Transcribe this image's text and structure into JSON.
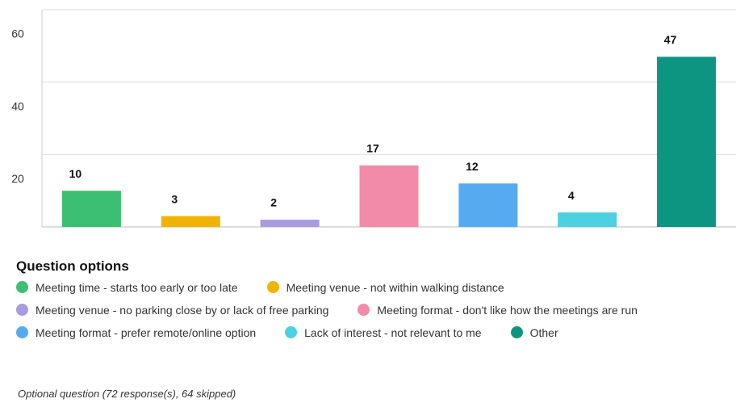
{
  "chart_data": {
    "type": "bar",
    "categories": [
      "Meeting time - starts too early or too late",
      "Meeting venue - not within walking distance",
      "Meeting venue - no parking close by or lack of free parking",
      "Meeting format - don't like how the meetings are run",
      "Meeting format - prefer remote/online option",
      "Lack of interest - not relevant to me",
      "Other"
    ],
    "values": [
      10,
      3,
      2,
      17,
      12,
      4,
      47
    ],
    "colors": [
      "#3dbf73",
      "#f0b400",
      "#a99be0",
      "#f28aa9",
      "#56aaf0",
      "#4dd0e0",
      "#0e9582"
    ],
    "ylim": [
      0,
      60
    ],
    "yticks": [
      20,
      40,
      60
    ],
    "grid": true,
    "legend_title": "Question options",
    "footnote": "Optional question (72 response(s), 64 skipped)"
  }
}
